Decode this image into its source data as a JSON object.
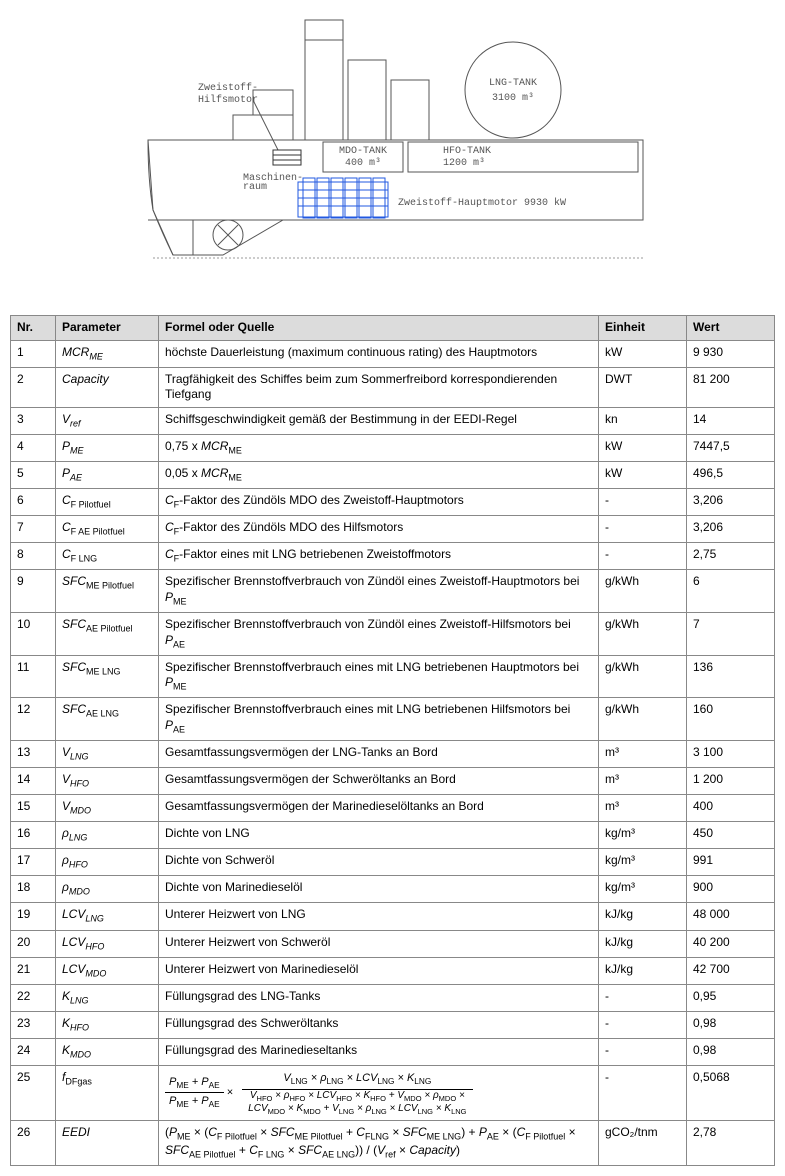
{
  "diagram": {
    "labels": {
      "aux": "Zweistoff-\nHilfsmotor",
      "lng_tank": "LNG-TANK",
      "lng_vol": "3100 m³",
      "mdo_tank": "MDO-TANK",
      "mdo_vol": "400 m³",
      "hfo_tank": "HFO-TANK",
      "hfo_vol": "1200 m³",
      "mroom": "Maschinen-\nraum",
      "main": "Zweistoff-Hauptmotor 9930 kW"
    }
  },
  "table": {
    "headers": {
      "nr": "Nr.",
      "param": "Parameter",
      "formel": "Formel oder Quelle",
      "einheit": "Einheit",
      "wert": "Wert"
    },
    "rows": [
      {
        "nr": "1",
        "param": "MCR<sub class='sub-it'>ME</sub>",
        "formel": "höchste Dauerleistung (maximum continuous rating) des Hauptmotors",
        "einheit": "kW",
        "wert": "9 930"
      },
      {
        "nr": "2",
        "param": "Capacity",
        "formel": "Tragfähigkeit des Schiffes beim zum Sommerfreibord korrespondierenden Tiefgang",
        "einheit": "DWT",
        "wert": "81 200"
      },
      {
        "nr": "3",
        "param": "V<sub class='sub-it'>ref</sub>",
        "formel": "Schiffsgeschwindigkeit gemäß der Bestimmung in der EEDI-Regel",
        "einheit": "kn",
        "wert": "14"
      },
      {
        "nr": "4",
        "param": "P<sub class='sub-it'>ME</sub>",
        "formel": "0,75 x <i>MCR<sub>ME</sub></i>",
        "einheit": "kW",
        "wert": "7447,5"
      },
      {
        "nr": "5",
        "param": "P<sub class='sub-it'>AE</sub>",
        "formel": "0,05 x <i>MCR<sub>ME</sub></i>",
        "einheit": "kW",
        "wert": "496,5"
      },
      {
        "nr": "6",
        "param": "C<sub>F Pilotfuel</sub>",
        "formel": "<i>C<sub>F</sub></i>-Faktor des Zündöls MDO des Zweistoff-Hauptmotors",
        "einheit": "-",
        "wert": "3,206"
      },
      {
        "nr": "7",
        "param": "C<sub>F AE Pilotfuel</sub>",
        "formel": "<i>C<sub>F</sub></i>-Faktor des Zündöls MDO des Hilfsmotors",
        "einheit": "-",
        "wert": "3,206"
      },
      {
        "nr": "8",
        "param": "C<sub>F LNG</sub>",
        "formel": "<i>C<sub>F</sub></i>-Faktor eines mit LNG betriebenen Zweistoffmotors",
        "einheit": "-",
        "wert": "2,75"
      },
      {
        "nr": "9",
        "param": "SFC<sub>ME Pilotfuel</sub>",
        "formel": "Spezifischer Brennstoffverbrauch von Zündöl eines Zweistoff-Hauptmotors bei <i>P<sub>ME</sub></i>",
        "einheit": "g/kWh",
        "wert": "6"
      },
      {
        "nr": "10",
        "param": "SFC<sub>AE Pilotfuel</sub>",
        "formel": "Spezifischer Brennstoffverbrauch von Zündöl eines Zweistoff-Hilfsmotors bei <i>P<sub>AE</sub></i>",
        "einheit": "g/kWh",
        "wert": "7"
      },
      {
        "nr": "11",
        "param": "SFC<sub>ME LNG</sub>",
        "formel": "Spezifischer Brennstoffverbrauch eines mit LNG betriebenen Hauptmotors bei <i>P<sub>ME</sub></i>",
        "einheit": "g/kWh",
        "wert": "136"
      },
      {
        "nr": "12",
        "param": "SFC<sub>AE LNG</sub>",
        "formel": "Spezifischer Brennstoffverbrauch eines mit LNG betriebenen Hilfsmotors bei <i>P<sub>AE</sub></i>",
        "einheit": "g/kWh",
        "wert": "160"
      },
      {
        "nr": "13",
        "param": "V<sub class='sub-it'>LNG</sub>",
        "formel": "Gesamtfassungsvermögen der LNG-Tanks an Bord",
        "einheit": "m³",
        "wert": "3 100"
      },
      {
        "nr": "14",
        "param": "V<sub class='sub-it'>HFO</sub>",
        "formel": "Gesamtfassungsvermögen der Schweröltanks an Bord",
        "einheit": "m³",
        "wert": "1 200"
      },
      {
        "nr": "15",
        "param": "V<sub class='sub-it'>MDO</sub>",
        "formel": "Gesamtfassungsvermögen der Marinedieselöltanks an Bord",
        "einheit": "m³",
        "wert": "400"
      },
      {
        "nr": "16",
        "param": "ρ<sub class='sub-it'>LNG</sub>",
        "formel": "Dichte von LNG",
        "einheit": "kg/m³",
        "wert": "450"
      },
      {
        "nr": "17",
        "param": "ρ<sub class='sub-it'>HFO</sub>",
        "formel": "Dichte von Schweröl",
        "einheit": "kg/m³",
        "wert": "991"
      },
      {
        "nr": "18",
        "param": "ρ<sub class='sub-it'>MDO</sub>",
        "formel": "Dichte von Marinedieselöl",
        "einheit": "kg/m³",
        "wert": "900"
      },
      {
        "nr": "19",
        "param": "LCV<sub class='sub-it'>LNG</sub>",
        "formel": "Unterer Heizwert von LNG",
        "einheit": "kJ/kg",
        "wert": "48 000"
      },
      {
        "nr": "20",
        "param": "LCV<sub class='sub-it'>HFO</sub>",
        "formel": "Unterer Heizwert von Schweröl",
        "einheit": "kJ/kg",
        "wert": "40 200"
      },
      {
        "nr": "21",
        "param": "LCV<sub class='sub-it'>MDO</sub>",
        "formel": "Unterer Heizwert von Marinedieselöl",
        "einheit": "kJ/kg",
        "wert": "42 700"
      },
      {
        "nr": "22",
        "param": "K<sub class='sub-it'>LNG</sub>",
        "formel": "Füllungsgrad des LNG-Tanks",
        "einheit": "-",
        "wert": "0,95"
      },
      {
        "nr": "23",
        "param": "K<sub class='sub-it'>HFO</sub>",
        "formel": "Füllungsgrad des Schweröltanks",
        "einheit": "-",
        "wert": "0,98"
      },
      {
        "nr": "24",
        "param": "K<sub class='sub-it'>MDO</sub>",
        "formel": "Füllungsgrad des Marinedieseltanks",
        "einheit": "-",
        "wert": "0,98"
      },
      {
        "nr": "25",
        "param": "f<sub>DFgas</sub>",
        "formel_special": "fdfgas",
        "einheit": "-",
        "wert": "0,5068"
      },
      {
        "nr": "26",
        "param": "EEDI",
        "formel": "(<i>P<sub>ME</sub></i> × (<i>C<sub>F Pilotfuel</sub></i> × <i>SFC<sub>ME Pilotfuel</sub></i> + <i>C<sub>FLNG</sub></i> × <i>SFC<sub>ME LNG</sub></i>) + <i>P<sub>AE</sub></i> × (<i>C<sub>F Pilotfuel</sub></i> × <i>SFC<sub>AE Pilotfuel</sub></i> + <i>C<sub>F LNG</sub></i> × <i>SFC<sub>AE LNG</sub></i>)) / (<i>V<sub>ref</sub></i> × <i>Capacity</i>)",
        "einheit": "gCO₂/tnm",
        "wert": "2,78"
      }
    ],
    "formula_25": {
      "left_num": "P<sub>ME</sub> + P<sub>AE</sub>",
      "left_den": "P<sub>ME</sub> + P<sub>AE</sub>",
      "right_num": "V<sub>LNG</sub> × ρ<sub>LNG</sub> × LCV<sub>LNG</sub> × K<sub>LNG</sub>",
      "right_den": "V<sub>HFO</sub> × ρ<sub>HFO</sub> × LCV<sub>HFO</sub> × K<sub>HFO</sub> + V<sub>MDO</sub> × ρ<sub>MDO</sub> ×<br>LCV<sub>MDO</sub> × K<sub>MDO</sub> + V<sub>LNG</sub> × ρ<sub>LNG</sub> × LCV<sub>LNG</sub> × K<sub>LNG</sub>"
    }
  }
}
